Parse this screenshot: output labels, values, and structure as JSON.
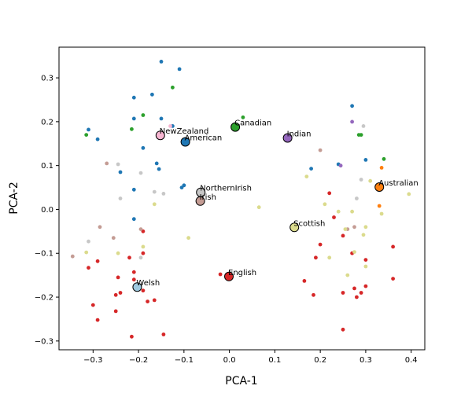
{
  "chart_data": {
    "type": "scatter",
    "title": "",
    "xlabel": "PCA-1",
    "ylabel": "PCA-2",
    "xlim": [
      -0.375,
      0.43
    ],
    "ylim": [
      -0.32,
      0.37
    ],
    "x_ticks": [
      -0.3,
      -0.2,
      -0.1,
      0.0,
      0.1,
      0.2,
      0.3,
      0.4
    ],
    "x_tick_labels": [
      "−0.3",
      "−0.2",
      "−0.1",
      "0.0",
      "0.1",
      "0.2",
      "0.3",
      "0.4"
    ],
    "y_ticks": [
      -0.3,
      -0.2,
      -0.1,
      0.0,
      0.1,
      0.2,
      0.3
    ],
    "y_tick_labels": [
      "−0.3",
      "−0.2",
      "−0.1",
      "0.0",
      "0.1",
      "0.2",
      "0.3"
    ],
    "grid": false,
    "legend": "none",
    "series": [
      {
        "color": "#1f77b4",
        "points": [
          [
            -0.15,
            0.337
          ],
          [
            -0.11,
            0.32
          ],
          [
            -0.17,
            0.262
          ],
          [
            -0.21,
            0.255
          ],
          [
            -0.15,
            0.207
          ],
          [
            -0.31,
            0.182
          ],
          [
            -0.29,
            0.16
          ],
          [
            -0.19,
            0.14
          ],
          [
            -0.125,
            0.19
          ],
          [
            -0.21,
            0.207
          ],
          [
            -0.16,
            0.105
          ],
          [
            -0.155,
            0.092
          ],
          [
            -0.1,
            0.055
          ],
          [
            -0.105,
            0.05
          ],
          [
            -0.24,
            0.085
          ],
          [
            -0.21,
            0.045
          ],
          [
            -0.21,
            -0.022
          ],
          [
            0.27,
            0.236
          ],
          [
            0.3,
            0.113
          ],
          [
            0.24,
            0.103
          ],
          [
            0.18,
            0.093
          ]
        ]
      },
      {
        "color": "#2ca02c",
        "points": [
          [
            -0.125,
            0.278
          ],
          [
            -0.19,
            0.215
          ],
          [
            -0.215,
            0.183
          ],
          [
            -0.315,
            0.17
          ],
          [
            0.03,
            0.21
          ],
          [
            0.29,
            0.17
          ],
          [
            0.285,
            0.17
          ],
          [
            0.34,
            0.115
          ]
        ]
      },
      {
        "color": "#d62728",
        "points": [
          [
            -0.19,
            -0.05
          ],
          [
            -0.19,
            -0.1
          ],
          [
            -0.22,
            -0.11
          ],
          [
            -0.245,
            -0.155
          ],
          [
            -0.31,
            -0.133
          ],
          [
            -0.29,
            -0.118
          ],
          [
            -0.21,
            -0.143
          ],
          [
            -0.21,
            -0.16
          ],
          [
            -0.19,
            -0.185
          ],
          [
            -0.25,
            -0.195
          ],
          [
            -0.24,
            -0.19
          ],
          [
            -0.3,
            -0.218
          ],
          [
            -0.18,
            -0.21
          ],
          [
            -0.165,
            -0.207
          ],
          [
            -0.25,
            -0.232
          ],
          [
            -0.29,
            -0.252
          ],
          [
            -0.145,
            -0.285
          ],
          [
            -0.215,
            -0.29
          ],
          [
            -0.02,
            -0.148
          ],
          [
            0.22,
            0.037
          ],
          [
            0.23,
            -0.018
          ],
          [
            0.2,
            -0.08
          ],
          [
            0.19,
            -0.11
          ],
          [
            0.25,
            -0.06
          ],
          [
            0.27,
            -0.1
          ],
          [
            0.3,
            -0.115
          ],
          [
            0.36,
            -0.085
          ],
          [
            0.165,
            -0.163
          ],
          [
            0.185,
            -0.195
          ],
          [
            0.25,
            -0.19
          ],
          [
            0.28,
            -0.2
          ],
          [
            0.29,
            -0.19
          ],
          [
            0.3,
            -0.175
          ],
          [
            0.36,
            -0.158
          ],
          [
            0.25,
            -0.274
          ],
          [
            0.275,
            -0.18
          ]
        ]
      },
      {
        "color": "#c49c94",
        "points": [
          [
            -0.27,
            0.105
          ],
          [
            -0.285,
            -0.04
          ],
          [
            -0.255,
            -0.065
          ],
          [
            -0.345,
            -0.107
          ],
          [
            -0.195,
            -0.045
          ],
          [
            0.2,
            0.135
          ],
          [
            0.275,
            -0.04
          ],
          [
            0.26,
            -0.045
          ]
        ]
      },
      {
        "color": "#c7c7c7",
        "points": [
          [
            -0.245,
            0.103
          ],
          [
            -0.195,
            0.083
          ],
          [
            -0.165,
            0.04
          ],
          [
            -0.145,
            0.036
          ],
          [
            -0.24,
            0.025
          ],
          [
            -0.31,
            -0.073
          ],
          [
            -0.195,
            -0.11
          ],
          [
            0.295,
            0.19
          ],
          [
            0.28,
            0.025
          ],
          [
            0.29,
            0.068
          ]
        ]
      },
      {
        "color": "#dbdb8d",
        "points": [
          [
            -0.165,
            0.012
          ],
          [
            -0.09,
            -0.065
          ],
          [
            -0.245,
            -0.1
          ],
          [
            -0.315,
            -0.098
          ],
          [
            -0.19,
            -0.085
          ],
          [
            0.065,
            0.005
          ],
          [
            0.17,
            0.075
          ],
          [
            0.21,
            0.012
          ],
          [
            0.24,
            -0.005
          ],
          [
            0.27,
            -0.005
          ],
          [
            0.255,
            -0.045
          ],
          [
            0.3,
            -0.04
          ],
          [
            0.295,
            -0.058
          ],
          [
            0.22,
            -0.11
          ],
          [
            0.26,
            -0.15
          ],
          [
            0.3,
            -0.13
          ],
          [
            0.395,
            0.035
          ],
          [
            0.31,
            0.065
          ],
          [
            0.335,
            -0.01
          ],
          [
            0.275,
            -0.097
          ]
        ]
      },
      {
        "color": "#ff7f0e",
        "points": [
          [
            0.335,
            0.095
          ],
          [
            0.33,
            0.008
          ]
        ]
      },
      {
        "color": "#9467bd",
        "points": [
          [
            0.245,
            0.1
          ],
          [
            0.27,
            0.2
          ]
        ]
      },
      {
        "color": "#f7b6d2",
        "points": [
          [
            -0.13,
            0.19
          ]
        ]
      }
    ],
    "labeled_points": [
      {
        "label": "NewZealand",
        "x": -0.152,
        "y": 0.169,
        "color": "#f7b6d2"
      },
      {
        "label": "American",
        "x": -0.097,
        "y": 0.154,
        "color": "#1f77b4"
      },
      {
        "label": "Canadian",
        "x": 0.013,
        "y": 0.188,
        "color": "#2ca02c"
      },
      {
        "label": "Indian",
        "x": 0.128,
        "y": 0.163,
        "color": "#9467bd"
      },
      {
        "label": "Australian",
        "x": 0.33,
        "y": 0.051,
        "color": "#ff7f0e"
      },
      {
        "label": "NorthernIrish",
        "x": -0.063,
        "y": 0.039,
        "color": "#c7c7c7"
      },
      {
        "label": "Irish",
        "x": -0.064,
        "y": 0.019,
        "color": "#c49c94"
      },
      {
        "label": "Scottish",
        "x": 0.143,
        "y": -0.041,
        "color": "#dbdb8d"
      },
      {
        "label": "English",
        "x": -0.001,
        "y": -0.153,
        "color": "#d62728"
      },
      {
        "label": "Welsh",
        "x": -0.203,
        "y": -0.177,
        "color": "#9ecae1"
      }
    ]
  }
}
